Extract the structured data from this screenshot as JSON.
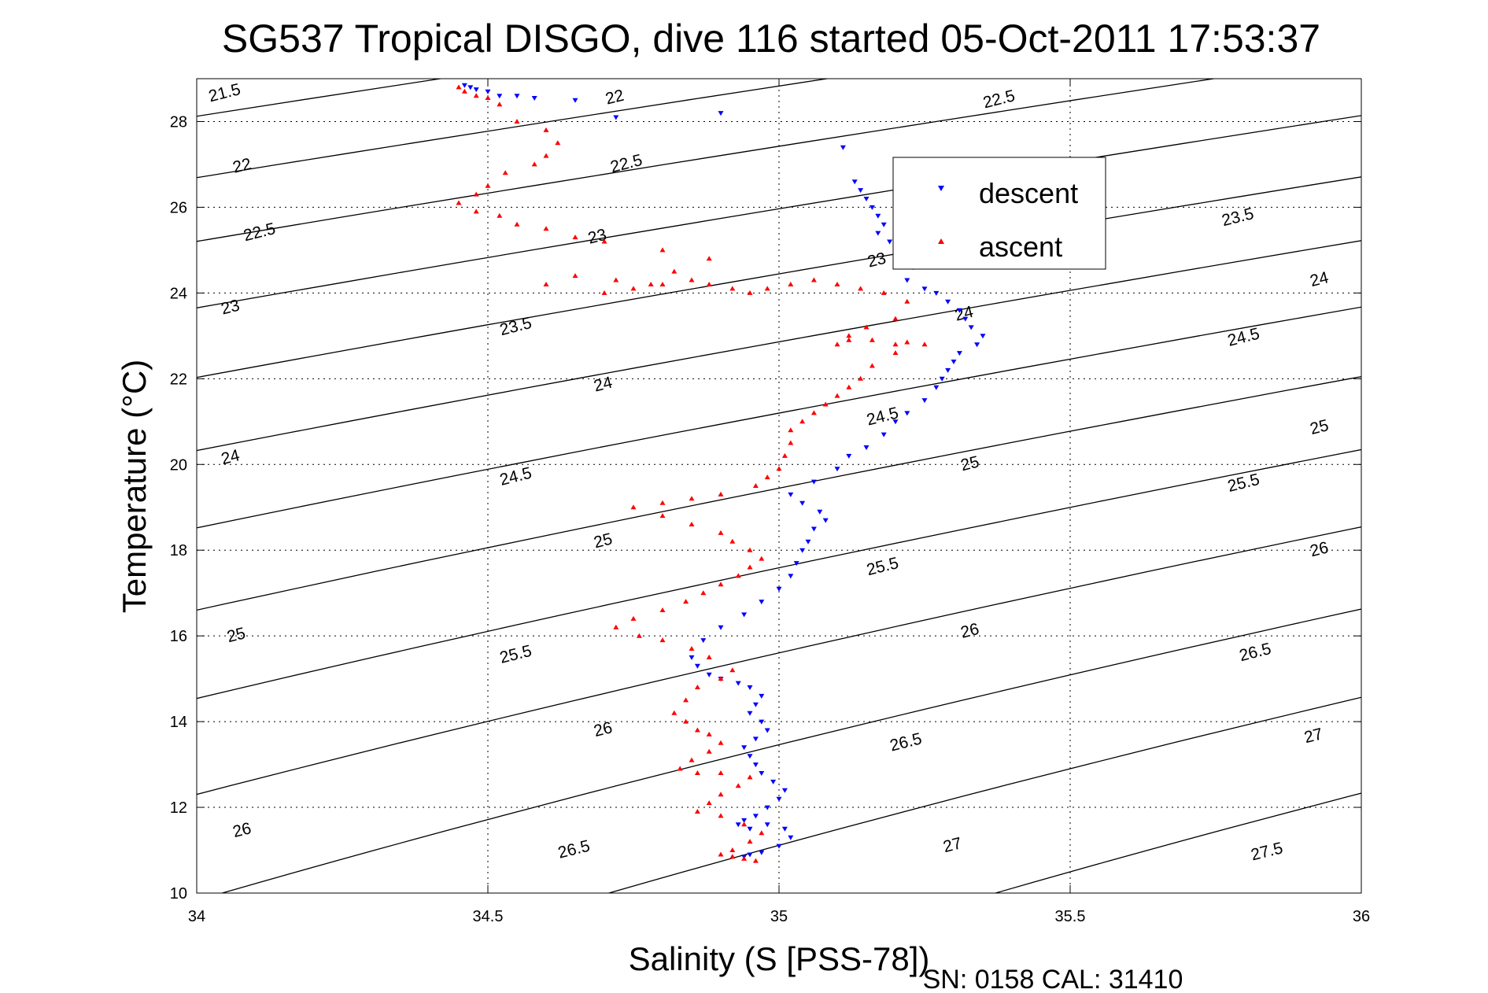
{
  "chart_data": {
    "type": "scatter",
    "title": "SG537 Tropical DISGO, dive 116 started 05-Oct-2011 17:53:37",
    "xlabel": "Salinity (S [PSS-78])",
    "ylabel": "Temperature (°C)",
    "xlim": [
      34,
      36
    ],
    "ylim": [
      10,
      29
    ],
    "xticks": [
      "34",
      "34.5",
      "35",
      "35.5",
      "36"
    ],
    "yticks": [
      "10",
      "12",
      "14",
      "16",
      "18",
      "20",
      "22",
      "24",
      "26",
      "28"
    ],
    "grid": true,
    "legend_position": "top-right",
    "footer": "SN: 0158  CAL: 31410",
    "density_contours": {
      "levels": [
        21.5,
        22,
        22.5,
        23,
        23.5,
        24,
        24.5,
        25,
        25.5,
        26,
        26.5,
        27,
        27.5
      ],
      "labels": [
        {
          "text": "21.5",
          "s": 34.05,
          "t": 28.55
        },
        {
          "text": "22",
          "s": 34.72,
          "t": 28.45
        },
        {
          "text": "22.5",
          "s": 35.38,
          "t": 28.4
        },
        {
          "text": "22",
          "s": 34.08,
          "t": 26.85
        },
        {
          "text": "22.5",
          "s": 34.74,
          "t": 26.9
        },
        {
          "text": "23.5",
          "s": 35.79,
          "t": 25.65
        },
        {
          "text": "22.5",
          "s": 34.11,
          "t": 25.3
        },
        {
          "text": "23",
          "s": 34.69,
          "t": 25.2
        },
        {
          "text": "23",
          "s": 35.17,
          "t": 24.65
        },
        {
          "text": "24",
          "s": 35.93,
          "t": 24.2
        },
        {
          "text": "23",
          "s": 34.06,
          "t": 23.55
        },
        {
          "text": "23.5",
          "s": 34.55,
          "t": 23.1
        },
        {
          "text": "24",
          "s": 35.32,
          "t": 23.4
        },
        {
          "text": "24.5",
          "s": 35.8,
          "t": 22.85
        },
        {
          "text": "24",
          "s": 34.7,
          "t": 21.75
        },
        {
          "text": "24.5",
          "s": 35.18,
          "t": 21.0
        },
        {
          "text": "25",
          "s": 35.93,
          "t": 20.75
        },
        {
          "text": "24",
          "s": 34.06,
          "t": 20.05
        },
        {
          "text": "24.5",
          "s": 34.55,
          "t": 19.6
        },
        {
          "text": "25",
          "s": 35.33,
          "t": 19.9
        },
        {
          "text": "25.5",
          "s": 35.8,
          "t": 19.45
        },
        {
          "text": "25",
          "s": 34.7,
          "t": 18.1
        },
        {
          "text": "25.5",
          "s": 35.18,
          "t": 17.5
        },
        {
          "text": "26",
          "s": 35.93,
          "t": 17.9
        },
        {
          "text": "25",
          "s": 34.07,
          "t": 15.9
        },
        {
          "text": "25.5",
          "s": 34.55,
          "t": 15.45
        },
        {
          "text": "26",
          "s": 35.33,
          "t": 16.0
        },
        {
          "text": "26.5",
          "s": 35.82,
          "t": 15.5
        },
        {
          "text": "26",
          "s": 34.7,
          "t": 13.7
        },
        {
          "text": "26.5",
          "s": 35.22,
          "t": 13.4
        },
        {
          "text": "27",
          "s": 35.92,
          "t": 13.55
        },
        {
          "text": "26",
          "s": 34.08,
          "t": 11.35
        },
        {
          "text": "26.5",
          "s": 34.65,
          "t": 10.9
        },
        {
          "text": "27",
          "s": 35.3,
          "t": 11.0
        },
        {
          "text": "27.5",
          "s": 35.84,
          "t": 10.85
        }
      ]
    },
    "series": [
      {
        "name": "descent",
        "color": "#0000ff",
        "marker": "triangle-down",
        "x": [
          34.46,
          34.47,
          34.48,
          34.5,
          34.52,
          34.55,
          34.58,
          34.65,
          34.72,
          34.9,
          35.11,
          35.13,
          35.14,
          35.15,
          35.16,
          35.17,
          35.18,
          35.17,
          35.19,
          35.2,
          35.21,
          35.23,
          35.22,
          35.25,
          35.27,
          35.29,
          35.31,
          35.32,
          35.33,
          35.35,
          35.34,
          35.31,
          35.3,
          35.29,
          35.28,
          35.27,
          35.25,
          35.22,
          35.2,
          35.18,
          35.15,
          35.12,
          35.1,
          35.06,
          35.02,
          35.04,
          35.07,
          35.08,
          35.06,
          35.05,
          35.04,
          35.03,
          35.02,
          35.0,
          34.97,
          34.94,
          34.9,
          34.87,
          34.85,
          34.86,
          34.88,
          34.9,
          34.93,
          34.95,
          34.97,
          34.96,
          34.95,
          34.97,
          34.98,
          34.96,
          34.94,
          34.95,
          34.96,
          34.97,
          34.99,
          35.01,
          35.0,
          34.98,
          34.96,
          34.94,
          34.93,
          34.95,
          34.98,
          35.01,
          35.02,
          35.0,
          34.97,
          34.95,
          34.94
        ],
        "y": [
          28.85,
          28.8,
          28.75,
          28.7,
          28.6,
          28.6,
          28.55,
          28.5,
          28.1,
          28.2,
          27.4,
          26.6,
          26.4,
          26.2,
          26.0,
          25.8,
          25.6,
          25.4,
          25.2,
          25.0,
          24.8,
          24.6,
          24.3,
          24.1,
          24.0,
          23.8,
          23.6,
          23.4,
          23.2,
          23.0,
          22.8,
          22.6,
          22.4,
          22.2,
          22.0,
          21.8,
          21.5,
          21.2,
          21.0,
          20.7,
          20.4,
          20.2,
          19.9,
          19.6,
          19.3,
          19.1,
          18.9,
          18.7,
          18.5,
          18.2,
          18.0,
          17.7,
          17.4,
          17.1,
          16.8,
          16.5,
          16.2,
          15.9,
          15.5,
          15.3,
          15.1,
          15.0,
          14.9,
          14.8,
          14.6,
          14.4,
          14.2,
          14.0,
          13.8,
          13.6,
          13.4,
          13.2,
          13.0,
          12.8,
          12.6,
          12.4,
          12.2,
          12.0,
          11.8,
          11.7,
          11.6,
          11.5,
          11.6,
          11.5,
          11.3,
          11.1,
          10.95,
          10.9,
          10.85
        ]
      },
      {
        "name": "ascent",
        "color": "#ff0000",
        "marker": "triangle-up",
        "x": [
          34.45,
          34.46,
          34.48,
          34.5,
          34.52,
          34.55,
          34.6,
          34.62,
          34.6,
          34.58,
          34.53,
          34.5,
          34.48,
          34.45,
          34.48,
          34.52,
          34.55,
          34.6,
          34.65,
          34.7,
          34.8,
          34.88,
          34.82,
          34.78,
          34.72,
          34.65,
          34.6,
          34.7,
          34.75,
          34.8,
          34.85,
          34.88,
          34.92,
          34.95,
          34.98,
          35.02,
          35.06,
          35.1,
          35.14,
          35.18,
          35.22,
          35.2,
          35.15,
          35.12,
          35.1,
          35.12,
          35.16,
          35.2,
          35.22,
          35.25,
          35.2,
          35.16,
          35.14,
          35.12,
          35.1,
          35.08,
          35.06,
          35.04,
          35.02,
          35.02,
          35.01,
          35.0,
          34.98,
          34.96,
          34.9,
          34.85,
          34.8,
          34.75,
          34.8,
          34.85,
          34.9,
          34.92,
          34.95,
          34.97,
          34.95,
          34.93,
          34.9,
          34.87,
          34.84,
          34.8,
          34.75,
          34.72,
          34.76,
          34.8,
          34.85,
          34.88,
          34.92,
          34.9,
          34.86,
          34.84,
          34.82,
          34.84,
          34.86,
          34.88,
          34.9,
          34.88,
          34.85,
          34.83,
          34.86,
          34.9,
          34.95,
          34.93,
          34.9,
          34.88,
          34.86,
          34.9,
          34.94,
          34.97,
          34.95,
          34.92,
          34.9,
          34.92,
          34.94,
          34.96
        ],
        "y": [
          28.8,
          28.7,
          28.6,
          28.55,
          28.4,
          28.0,
          27.8,
          27.5,
          27.2,
          27.0,
          26.8,
          26.5,
          26.3,
          26.1,
          25.9,
          25.8,
          25.6,
          25.5,
          25.3,
          25.2,
          25.0,
          24.8,
          24.5,
          24.2,
          24.3,
          24.4,
          24.2,
          24.0,
          24.1,
          24.2,
          24.3,
          24.2,
          24.1,
          24.0,
          24.1,
          24.2,
          24.3,
          24.2,
          24.1,
          24.0,
          23.8,
          23.4,
          23.2,
          23.0,
          22.8,
          22.9,
          22.9,
          22.8,
          22.85,
          22.8,
          22.6,
          22.3,
          22.0,
          21.8,
          21.6,
          21.4,
          21.2,
          21.0,
          20.8,
          20.5,
          20.2,
          19.9,
          19.7,
          19.5,
          19.3,
          19.2,
          19.1,
          19.0,
          18.8,
          18.6,
          18.4,
          18.2,
          18.0,
          17.8,
          17.6,
          17.4,
          17.2,
          17.0,
          16.8,
          16.6,
          16.4,
          16.2,
          16.0,
          15.9,
          15.7,
          15.5,
          15.2,
          15.0,
          14.8,
          14.5,
          14.2,
          14.0,
          13.8,
          13.7,
          13.5,
          13.3,
          13.1,
          12.9,
          12.8,
          12.8,
          12.7,
          12.5,
          12.3,
          12.1,
          11.9,
          11.8,
          11.6,
          11.4,
          11.2,
          11.0,
          10.9,
          10.85,
          10.8,
          10.75
        ]
      }
    ]
  }
}
